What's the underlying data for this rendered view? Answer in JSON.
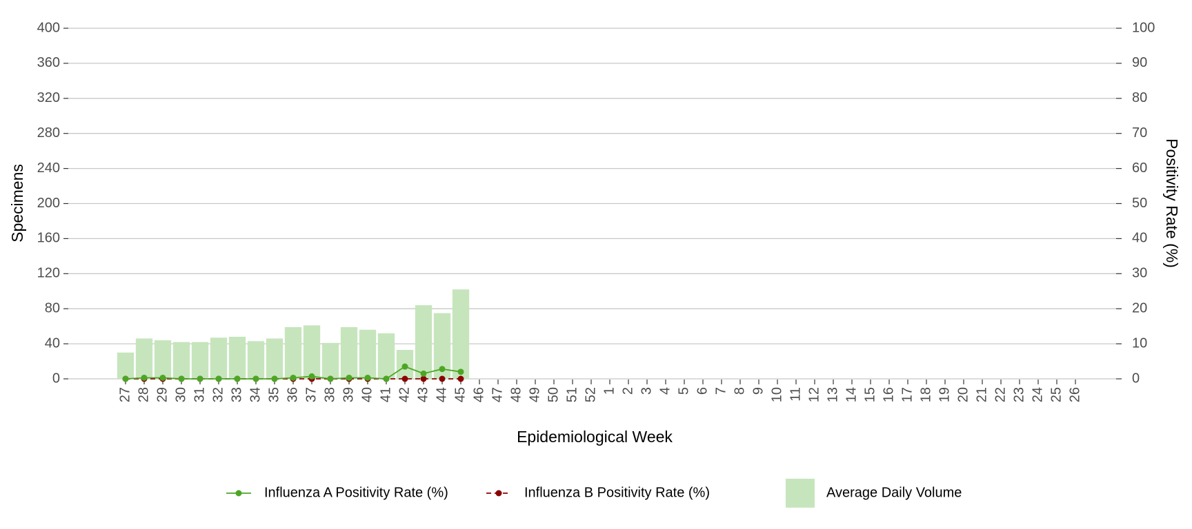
{
  "chart_data": {
    "type": "bar-line",
    "xlabel": "Epidemiological Week",
    "ylabel": "Specimens",
    "y2label": "Positivity Rate (%)",
    "categories": [
      "27",
      "28",
      "29",
      "30",
      "31",
      "32",
      "33",
      "34",
      "35",
      "36",
      "37",
      "38",
      "39",
      "40",
      "41",
      "42",
      "43",
      "44",
      "45",
      "46",
      "47",
      "48",
      "49",
      "50",
      "51",
      "52",
      "1",
      "2",
      "3",
      "4",
      "5",
      "6",
      "7",
      "8",
      "9",
      "10",
      "11",
      "12",
      "13",
      "14",
      "15",
      "16",
      "17",
      "18",
      "19",
      "20",
      "21",
      "22",
      "23",
      "24",
      "25",
      "26"
    ],
    "series": [
      {
        "name": "Average Daily Volume",
        "type": "bar",
        "axis": "y",
        "color": "#c6e5bc",
        "values": [
          30,
          46,
          44,
          42,
          42,
          47,
          48,
          43,
          46,
          59,
          61,
          41,
          59,
          56,
          52,
          33,
          84,
          75,
          102,
          null,
          null,
          null,
          null,
          null,
          null,
          null,
          null,
          null,
          null,
          null,
          null,
          null,
          null,
          null,
          null,
          null,
          null,
          null,
          null,
          null,
          null,
          null,
          null,
          null,
          null,
          null,
          null,
          null,
          null,
          null,
          null,
          null
        ]
      },
      {
        "name": "Influenza A Positivity Rate (%)",
        "type": "line",
        "axis": "y2",
        "color": "#4ca624",
        "dash": false,
        "values": [
          0,
          0.3,
          0.3,
          0,
          0,
          0,
          0,
          0,
          0,
          0.3,
          0.7,
          0,
          0.3,
          0.3,
          0,
          3.5,
          1.5,
          2.8,
          2,
          null,
          null,
          null,
          null,
          null,
          null,
          null,
          null,
          null,
          null,
          null,
          null,
          null,
          null,
          null,
          null,
          null,
          null,
          null,
          null,
          null,
          null,
          null,
          null,
          null,
          null,
          null,
          null,
          null,
          null,
          null,
          null,
          null
        ]
      },
      {
        "name": "Influenza B Positivity Rate (%)",
        "type": "line",
        "axis": "y2",
        "color": "#8b0000",
        "dash": true,
        "values": [
          0,
          0,
          0,
          0,
          0,
          0,
          0,
          0,
          0,
          0,
          0,
          0,
          0,
          0,
          0,
          0,
          0,
          0,
          0,
          null,
          null,
          null,
          null,
          null,
          null,
          null,
          null,
          null,
          null,
          null,
          null,
          null,
          null,
          null,
          null,
          null,
          null,
          null,
          null,
          null,
          null,
          null,
          null,
          null,
          null,
          null,
          null,
          null,
          null,
          null,
          null,
          null
        ]
      }
    ],
    "ylim": [
      0,
      400
    ],
    "yticks": [
      0,
      40,
      80,
      120,
      160,
      200,
      240,
      280,
      320,
      360,
      400
    ],
    "y2lim": [
      0,
      100
    ],
    "y2ticks": [
      0,
      10,
      20,
      30,
      40,
      50,
      60,
      70,
      80,
      90,
      100
    ],
    "grid": true
  }
}
